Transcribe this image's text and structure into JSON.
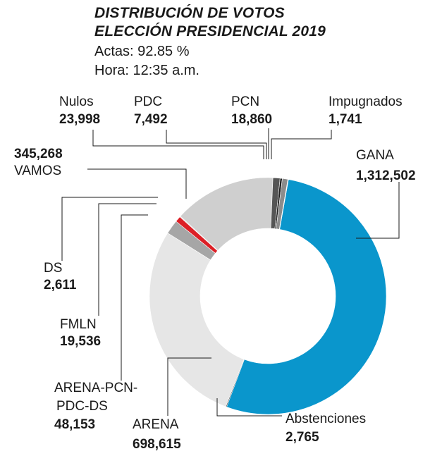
{
  "header": {
    "title_line1": "DISTRIBUCIÓN DE VOTOS",
    "title_line2": "ELECCIÓN PRESIDENCIAL 2019",
    "actas": "Actas: 92.85 %",
    "hora": "Hora: 12:35 a.m."
  },
  "chart_data": {
    "type": "pie",
    "subtype": "donut",
    "title": "DISTRIBUCIÓN DE VOTOS ELECCIÓN PRESIDENCIAL 2019",
    "slices": [
      {
        "label": "GANA",
        "display": "1,312,502",
        "value": 1312502,
        "color": "#0a96cc"
      },
      {
        "label": "Abstenciones",
        "display": "2,765",
        "value": 2765,
        "color": "#1a1a1a"
      },
      {
        "label": "ARENA",
        "display": "698,615",
        "value": 698615,
        "color": "#e6e6e6"
      },
      {
        "label": "ARENA-PCN-PDC-DS",
        "display": "48,153",
        "value": 48153,
        "color": "#a6a6a6"
      },
      {
        "label": "FMLN",
        "display": "19,536",
        "value": 19536,
        "color": "#dc1f26"
      },
      {
        "label": "DS",
        "display": "2,611",
        "value": 2611,
        "color": "#d9d9d9"
      },
      {
        "label": "VAMOS",
        "display": "345,268",
        "value": 345268,
        "color": "#cfcfcf"
      },
      {
        "label": "Nulos",
        "display": "23,998",
        "value": 23998,
        "color": "#555555"
      },
      {
        "label": "PDC",
        "display": "7,492",
        "value": 7492,
        "color": "#222222"
      },
      {
        "label": "PCN",
        "display": "18,860",
        "value": 18860,
        "color": "#8c8c8c"
      },
      {
        "label": "Impugnados",
        "display": "1,741",
        "value": 1741,
        "color": "#f2f2f2"
      }
    ]
  }
}
